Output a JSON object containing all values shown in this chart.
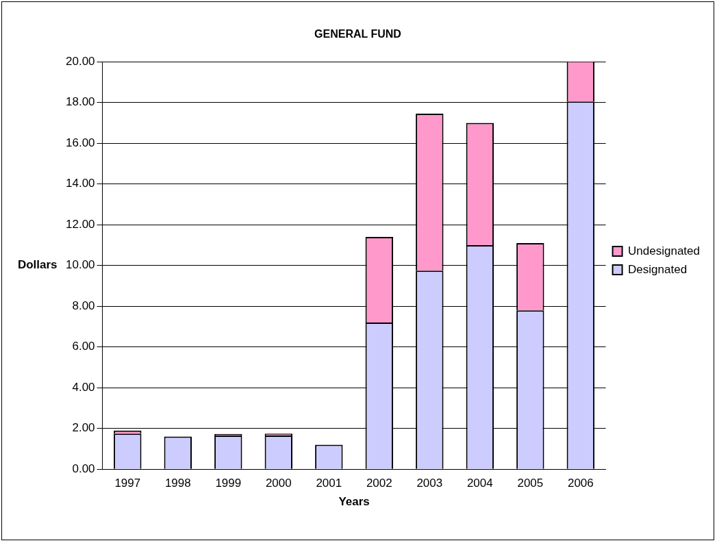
{
  "chart_data": {
    "type": "bar",
    "title": "GENERAL FUND",
    "xlabel": "Years",
    "ylabel": "Dollars",
    "categories": [
      "1997",
      "1998",
      "1999",
      "2000",
      "2001",
      "2002",
      "2003",
      "2004",
      "2005",
      "2006"
    ],
    "stacked": true,
    "series": [
      {
        "name": "Designated",
        "color": "#ccccff",
        "values": [
          1.75,
          1.6,
          1.65,
          1.65,
          1.2,
          7.2,
          9.75,
          11.0,
          7.8,
          18.05
        ]
      },
      {
        "name": "Undesignated",
        "color": "#ff99cc",
        "values": [
          0.15,
          0,
          0.08,
          0.1,
          0,
          4.2,
          7.7,
          6.0,
          3.3,
          2.0
        ]
      }
    ],
    "ylim": [
      0,
      20
    ],
    "yticks": [
      {
        "value": 0,
        "label": "0.00"
      },
      {
        "value": 2,
        "label": "2.00"
      },
      {
        "value": 4,
        "label": "4.00"
      },
      {
        "value": 6,
        "label": "6.00"
      },
      {
        "value": 8,
        "label": "8.00"
      },
      {
        "value": 10,
        "label": "10.00"
      },
      {
        "value": 12,
        "label": "12.00"
      },
      {
        "value": 14,
        "label": "14.00"
      },
      {
        "value": 16,
        "label": "16.00"
      },
      {
        "value": 18,
        "label": "18.00"
      },
      {
        "value": 20,
        "label": "20.00"
      }
    ],
    "grid": "y",
    "legend": "right"
  }
}
